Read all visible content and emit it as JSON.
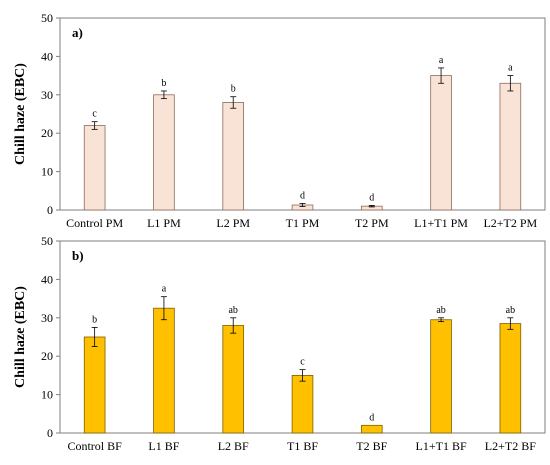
{
  "chart_data": [
    {
      "type": "bar",
      "panel_label": "a)",
      "ylabel": "Chill haze (EBC)",
      "xlabel": "",
      "ylim": [
        0,
        50
      ],
      "yticks": [
        0,
        10,
        20,
        30,
        40,
        50
      ],
      "grid": false,
      "bar_color": "#f9e3d6",
      "bar_edge": "#8b6b5a",
      "categories": [
        "Control PM",
        "L1 PM",
        "L2 PM",
        "T1 PM",
        "T2 PM",
        "L1+T1 PM",
        "L2+T2 PM"
      ],
      "values": [
        22,
        30,
        28,
        1.3,
        1.0,
        35,
        33
      ],
      "errors": [
        1.0,
        1.0,
        1.5,
        0.4,
        0.2,
        2.0,
        2.0
      ],
      "significance": [
        "c",
        "b",
        "b",
        "d",
        "d",
        "a",
        "a"
      ]
    },
    {
      "type": "bar",
      "panel_label": "b)",
      "ylabel": "Chill haze (EBC)",
      "xlabel": "",
      "ylim": [
        0,
        50
      ],
      "yticks": [
        0,
        10,
        20,
        30,
        40,
        50
      ],
      "grid": false,
      "bar_color": "#ffc000",
      "bar_edge": "#7f6000",
      "categories": [
        "Control BF",
        "L1 BF",
        "L2 BF",
        "T1 BF",
        "T2 BF",
        "L1+T1 BF",
        "L2+T2 BF"
      ],
      "values": [
        25,
        32.5,
        28,
        15,
        2,
        29.5,
        28.5
      ],
      "errors": [
        2.5,
        3.0,
        2.0,
        1.5,
        0,
        0.5,
        1.5
      ],
      "significance": [
        "b",
        "a",
        "ab",
        "c",
        "d",
        "ab",
        "ab"
      ]
    }
  ]
}
